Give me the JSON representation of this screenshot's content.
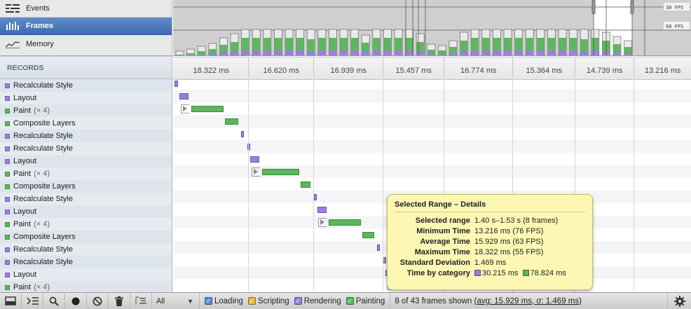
{
  "modes": [
    {
      "label": "Events",
      "icon": "events-icon"
    },
    {
      "label": "Frames",
      "icon": "frames-icon",
      "selected": true
    },
    {
      "label": "Memory",
      "icon": "memory-icon"
    }
  ],
  "overview": {
    "fps_labels": [
      "30 FPS",
      "60 FPS"
    ]
  },
  "records_header": "RECORDS",
  "records": [
    {
      "label": "Recalculate Style",
      "category": "rendering"
    },
    {
      "label": "Layout",
      "category": "rendering"
    },
    {
      "label": "Paint",
      "count": "(× 4)",
      "category": "painting"
    },
    {
      "label": "Composite Layers",
      "category": "painting"
    },
    {
      "label": "Recalculate Style",
      "category": "rendering"
    },
    {
      "label": "Recalculate Style",
      "category": "rendering"
    },
    {
      "label": "Layout",
      "category": "rendering"
    },
    {
      "label": "Paint",
      "count": "(× 4)",
      "category": "painting"
    },
    {
      "label": "Composite Layers",
      "category": "painting"
    },
    {
      "label": "Recalculate Style",
      "category": "rendering"
    },
    {
      "label": "Layout",
      "category": "rendering"
    },
    {
      "label": "Paint",
      "count": "(× 4)",
      "category": "painting"
    },
    {
      "label": "Composite Layers",
      "category": "painting"
    },
    {
      "label": "Recalculate Style",
      "category": "rendering"
    },
    {
      "label": "Recalculate Style",
      "category": "rendering"
    },
    {
      "label": "Layout",
      "category": "rendering"
    },
    {
      "label": "Paint",
      "count": "(× 4)",
      "category": "painting"
    }
  ],
  "frame_durations": [
    "18.322 ms",
    "16.620 ms",
    "16.939 ms",
    "15.457 ms",
    "16.774 ms",
    "15.364 ms",
    "14.739 ms",
    "13.216 ms"
  ],
  "tooltip": {
    "title": "Selected Range – Details",
    "rows": [
      {
        "key": "Selected range",
        "value": "1.40 s–1.53 s (8 frames)"
      },
      {
        "key": "Minimum Time",
        "value": "13.216 ms (76 FPS)"
      },
      {
        "key": "Average Time",
        "value": "15.929 ms (63 FPS)"
      },
      {
        "key": "Maximum Time",
        "value": "18.322 ms (55 FPS)"
      },
      {
        "key": "Standard Deviation",
        "value": "1.469 ms"
      }
    ],
    "by_category_key": "Time by category",
    "by_category": [
      {
        "value": "30.215 ms",
        "color": "#9b7fe0"
      },
      {
        "value": "78.824 ms",
        "color": "#5cb85c"
      }
    ]
  },
  "statusbar": {
    "filter_select_value": "All",
    "filters": [
      {
        "label": "Loading",
        "color": "#5a8fd6"
      },
      {
        "label": "Scripting",
        "color": "#e8b83a"
      },
      {
        "label": "Rendering",
        "color": "#9b7fe0"
      },
      {
        "label": "Painting",
        "color": "#5cb85c"
      }
    ],
    "frames_shown": "8 of 43 frames shown",
    "stats": "(avg: 15.929 ms, σ: 1.469 ms)"
  },
  "colors": {
    "rendering": "#9b7fe0",
    "painting": "#5cb85c",
    "selected_mode": "#4a78bd"
  }
}
